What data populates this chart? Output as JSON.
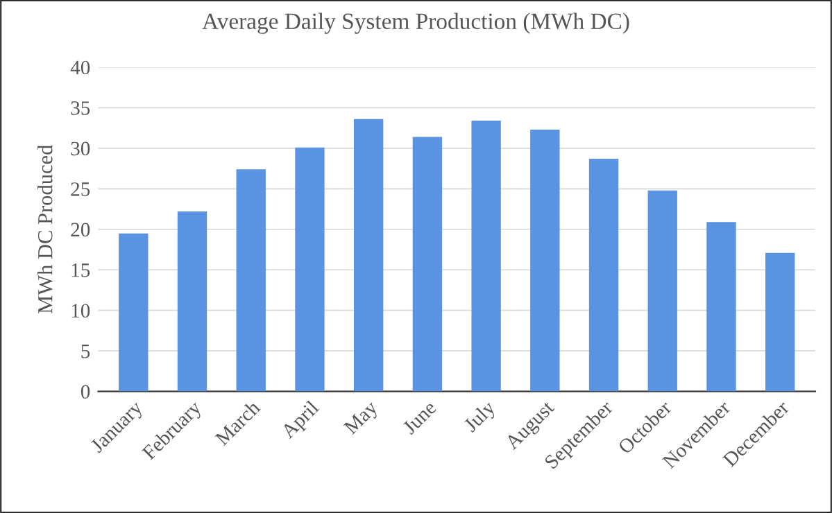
{
  "chart_data": {
    "type": "bar",
    "title": "Average Daily System Production (MWh DC)",
    "ylabel": "MWh DC Produced",
    "categories": [
      "January",
      "February",
      "March",
      "April",
      "May",
      "June",
      "July",
      "August",
      "September",
      "October",
      "November",
      "December"
    ],
    "values": [
      19.5,
      22.2,
      27.4,
      30.1,
      33.6,
      31.4,
      33.4,
      32.3,
      28.7,
      24.8,
      20.9,
      17.1
    ],
    "color": "#5a93e1",
    "ylim": [
      0,
      40
    ],
    "yticks": [
      0,
      5,
      10,
      15,
      20,
      25,
      30,
      35,
      40
    ],
    "grid": "y",
    "legend": false
  }
}
